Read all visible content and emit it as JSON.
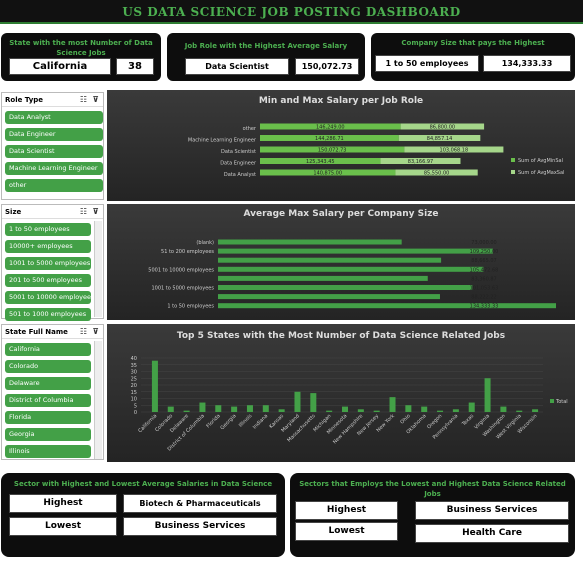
{
  "dashboard": {
    "title": "US DATA SCIENCE JOB POSTING DASHBOARD"
  },
  "kpis": {
    "state": {
      "title": "State with the most Number of Data Science Jobs",
      "name": "California",
      "value": "38"
    },
    "role": {
      "title": "Job Role with the Highest Average Salary",
      "name": "Data Scientist",
      "value": "150,072.73"
    },
    "company": {
      "title": "Company Size that pays the Highest",
      "name": "1 to 50 employees",
      "value": "134,333.33"
    }
  },
  "slicers": {
    "role_type": {
      "header": "Role Type",
      "items": [
        "Data Analyst",
        "Data Engineer",
        "Data Scientist",
        "Machine Learning Engineer",
        "other"
      ]
    },
    "size": {
      "header": "Size",
      "items": [
        "1 to 50 employees",
        "10000+ employees",
        "1001 to 5000 employees",
        "201 to 500 employees",
        "5001 to 10000 employees",
        "501 to 1000 employees"
      ]
    },
    "state": {
      "header": "State Full Name",
      "items": [
        "California",
        "Colorado",
        "Delaware",
        "District of Columbia",
        "Florida",
        "Georgia",
        "Illinois"
      ]
    }
  },
  "chart_data": [
    {
      "type": "bar",
      "title": "Min and Max Salary per Job Role",
      "categories": [
        "other",
        "Machine Learning Engineer",
        "Data Scientist",
        "Data Engineer",
        "Data Analyst"
      ],
      "series": [
        {
          "name": "Sum of AvgMinSal",
          "values": [
            146249,
            144286.71,
            150072.73,
            125343.45,
            140875
          ]
        },
        {
          "name": "Sum of AvgMaxSal",
          "values": [
            86800,
            84857.14,
            103068.18,
            83166.97,
            85550
          ]
        }
      ],
      "bar_labels_min": [
        "146,249.00",
        "144,286.71",
        "150,072.73",
        "125,343.45",
        "140,875.00"
      ],
      "bar_labels_max": [
        "86,800.00",
        "84,857.14",
        "103,068.18",
        "83,166.97",
        "85,550.00"
      ],
      "legend_position": "right"
    },
    {
      "type": "bar",
      "title": "Average Max Salary per Company Size",
      "categories": [
        "(blank)",
        "51 to 200 employees",
        "",
        "5001 to 10000 employees",
        "",
        "1001 to 5000 employees",
        "",
        "1 to 50 employees"
      ],
      "values": [
        73000,
        109250,
        88665.07,
        105472.68,
        83360.87,
        101053.63,
        88222.22,
        134333.33
      ],
      "labels": [
        "73,000.00",
        "109,250.00",
        "88,665.07",
        "105,472.68",
        "83,360.87",
        "101,053.63",
        "88,222.22",
        "134,333.33"
      ]
    },
    {
      "type": "bar",
      "title": "Top 5 States with the Most Number of Data Science Related Jobs",
      "categories": [
        "California",
        "Colorado",
        "Delaware",
        "District of Columbia",
        "Florida",
        "Georgia",
        "Illinois",
        "Indiana",
        "Kansas",
        "Maryland",
        "Massachusetts",
        "Michigan",
        "Minnesota",
        "New Hampshire",
        "New Jersey",
        "New York",
        "Ohio",
        "Oklahoma",
        "Oregon",
        "Pennsylvania",
        "Texas",
        "Virginia",
        "Washington",
        "West Virginia",
        "Wisconsin"
      ],
      "series": [
        {
          "name": "Total",
          "values": [
            38,
            4,
            1,
            7,
            5,
            4,
            5,
            5,
            2,
            15,
            14,
            1,
            4,
            2,
            1,
            11,
            5,
            4,
            1,
            2,
            7,
            25,
            4,
            1,
            2
          ]
        }
      ],
      "ylim": [
        0,
        40
      ],
      "yticks": [
        "40",
        "35",
        "30",
        "25",
        "20",
        "15",
        "10",
        "5",
        "0"
      ],
      "legend_position": "right"
    }
  ],
  "bottom_left": {
    "title": "Sector with Highest and Lowest Average Salaries in Data Science",
    "highest_label": "Highest",
    "highest_value": "Biotech & Pharmaceuticals",
    "lowest_label": "Lowest",
    "lowest_value": "Business Services"
  },
  "bottom_right": {
    "title": "Sectors that Employs the Lowest and Highest Data Science Related Jobs",
    "highest_label": "Highest",
    "highest_value": "Business Services",
    "lowest_label": "Lowest",
    "lowest_value": "Health Care"
  },
  "colors": {
    "accent": "#4caf50",
    "bar": "#43a047",
    "dark": "#0d0d0d"
  }
}
